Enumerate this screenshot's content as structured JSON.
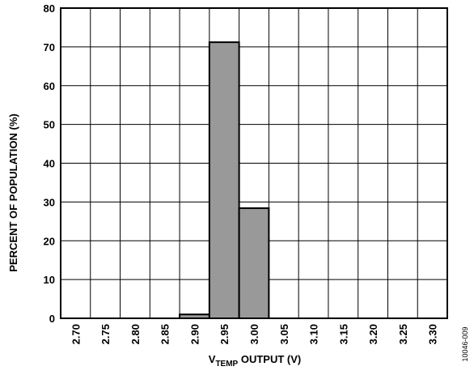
{
  "chart_data": {
    "type": "bar",
    "categories": [
      "2.70",
      "2.75",
      "2.80",
      "2.85",
      "2.90",
      "2.95",
      "3.00",
      "3.05",
      "3.10",
      "3.15",
      "3.20",
      "3.25",
      "3.30"
    ],
    "values": [
      0,
      0,
      0,
      0,
      1,
      71.2,
      28.4,
      0,
      0,
      0,
      0,
      0,
      0
    ],
    "ylabel": "PERCENT OF POPULATION (%)",
    "xlabel": {
      "main": "V",
      "subscript": "TEMP",
      "rest": " OUTPUT (V)"
    },
    "ylim": [
      0,
      80
    ],
    "yticks": [
      0,
      10,
      20,
      30,
      40,
      50,
      60,
      70,
      80
    ],
    "grid": true,
    "bar_color": "#999999"
  },
  "figure_id": "10046-009"
}
